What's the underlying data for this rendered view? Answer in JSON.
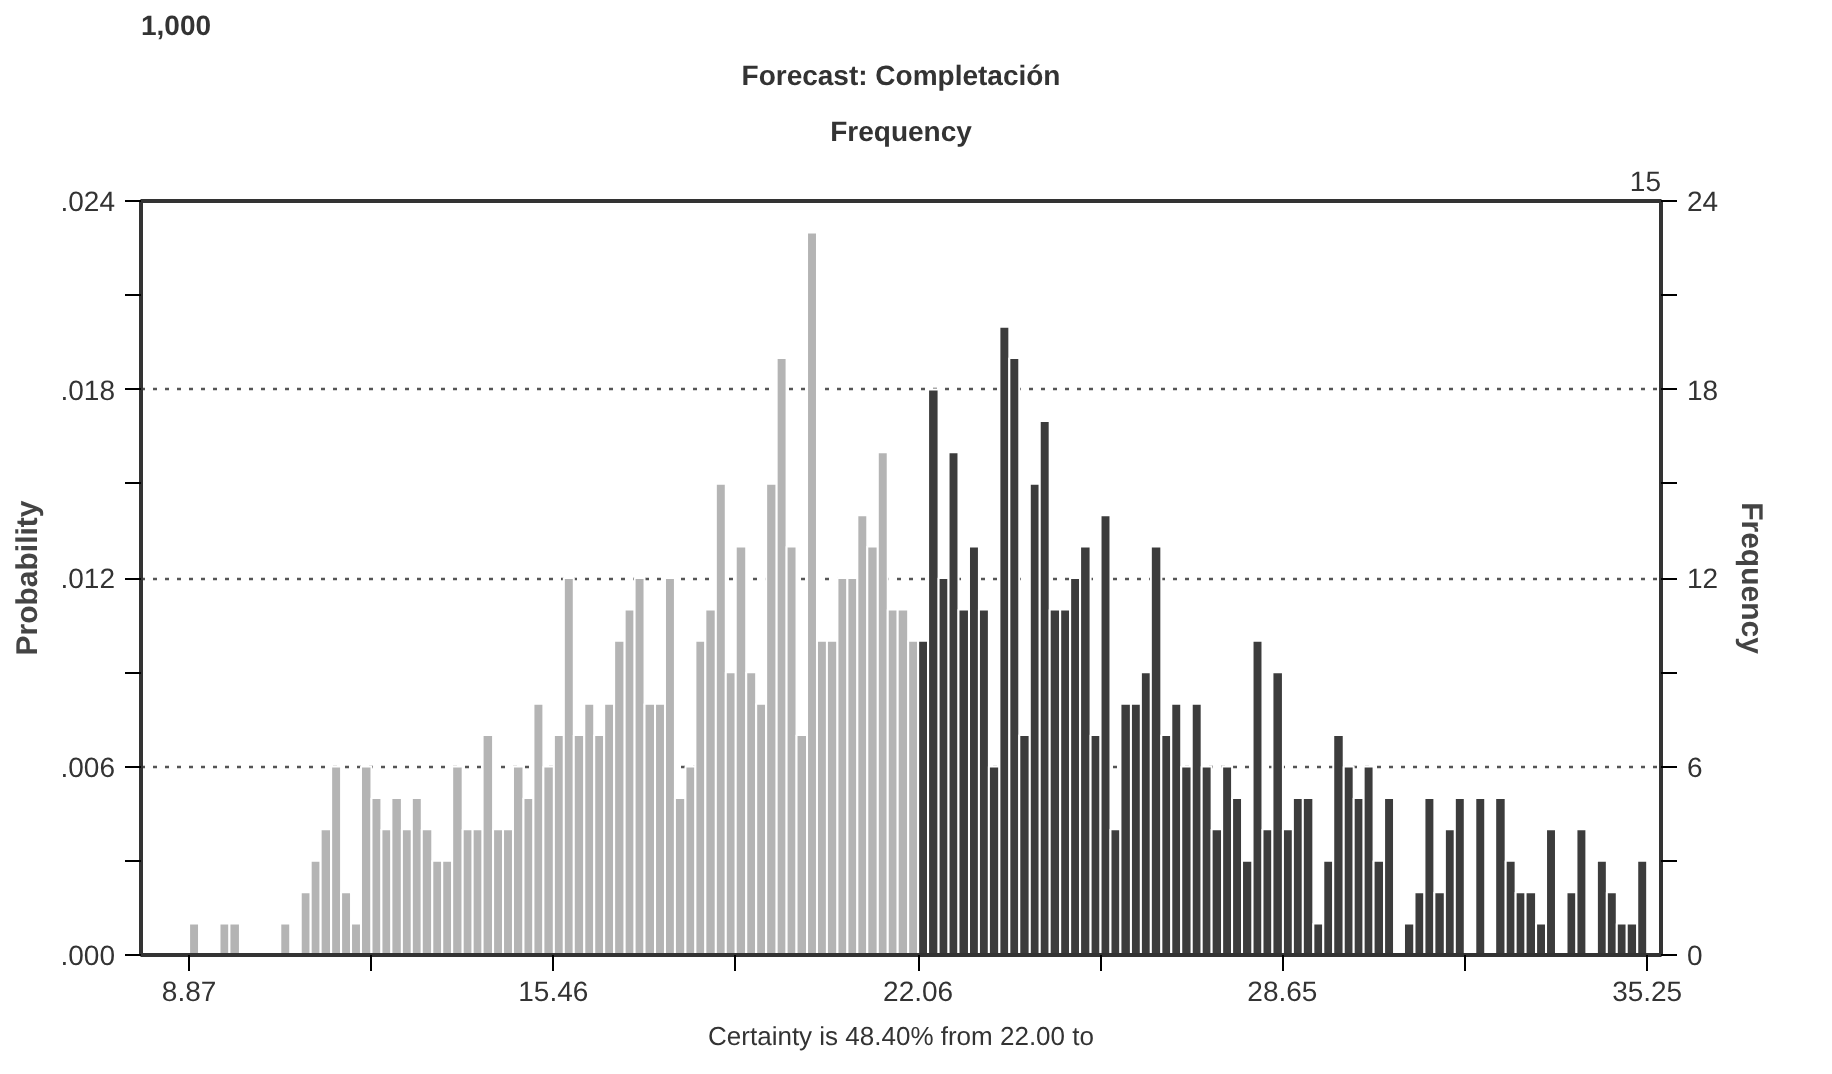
{
  "chart_data": {
    "type": "histogram",
    "title": "Forecast: Completación",
    "subtitle": "Frequency",
    "ylabel": "Probability",
    "y2label": "Frequency",
    "annotations": [
      "1,000",
      "15",
      "Certainty is 48.40% from 22.00 to"
    ],
    "bins": [
      8.87,
      9.05,
      9.24,
      9.42,
      9.6,
      9.79,
      9.97,
      10.15,
      10.34,
      10.52,
      10.7,
      10.89,
      11.07,
      11.25,
      11.44,
      11.62,
      11.8,
      11.98,
      12.17,
      12.35,
      12.53,
      12.72,
      12.9,
      13.08,
      13.27,
      13.45,
      13.63,
      13.82,
      14.0,
      14.18,
      14.37,
      14.55,
      14.73,
      14.92,
      15.1,
      15.28,
      15.47,
      15.65,
      15.83,
      16.02,
      16.2,
      16.38,
      16.56,
      16.75,
      16.93,
      17.11,
      17.3,
      17.48,
      17.66,
      17.85,
      18.03,
      18.21,
      18.4,
      18.58,
      18.76,
      18.95,
      19.13,
      19.31,
      19.5,
      19.68,
      19.86,
      20.05,
      20.23,
      20.41,
      20.6,
      20.78,
      20.96,
      21.14,
      21.33,
      21.51,
      21.69,
      21.88,
      22.06,
      22.24,
      22.43,
      22.61,
      22.79,
      22.98,
      23.16,
      23.34,
      23.53,
      23.71,
      23.89,
      24.08,
      24.26,
      24.44,
      24.63,
      24.81,
      24.99,
      25.18,
      25.36,
      25.54,
      25.72,
      25.91,
      26.09,
      26.27,
      26.46,
      26.64,
      26.82,
      27.01,
      27.19,
      27.37,
      27.56,
      27.74,
      27.92,
      28.11,
      28.29,
      28.47,
      28.66,
      28.84,
      29.02,
      29.21,
      29.39,
      29.57,
      29.76,
      29.94,
      30.12,
      30.3,
      30.49,
      30.67,
      30.85,
      31.04,
      31.22,
      31.4,
      31.59,
      31.77,
      31.95,
      32.14,
      32.32,
      32.5,
      32.69,
      32.87,
      33.05,
      33.24,
      33.42,
      33.6,
      33.79,
      33.97,
      34.15,
      34.34,
      34.52,
      34.7,
      34.88,
      35.07,
      35.25
    ],
    "series": [
      {
        "color": "#b4b4b4",
        "axis": "y2",
        "values": [
          1,
          0,
          0,
          1,
          1,
          0,
          0,
          0,
          0,
          1,
          0,
          2,
          3,
          4,
          6,
          2,
          1,
          6,
          5,
          4,
          5,
          4,
          5,
          4,
          3,
          3,
          6,
          4,
          4,
          7,
          4,
          4,
          6,
          5,
          8,
          6,
          7,
          12,
          7,
          8,
          7,
          8,
          10,
          11,
          12,
          8,
          8,
          12,
          5,
          6,
          10,
          11,
          15,
          9,
          13,
          9,
          8,
          15,
          19,
          13,
          7,
          23,
          10,
          10,
          12,
          12,
          14,
          13,
          16,
          11,
          11,
          10,
          null,
          null,
          null,
          null,
          null,
          null,
          null,
          null,
          null,
          null,
          null,
          null,
          null,
          null,
          null,
          null,
          null,
          null,
          null,
          null,
          null,
          null,
          null,
          null,
          null,
          null,
          null,
          null,
          null,
          null,
          null,
          null,
          null,
          null,
          null,
          null,
          null,
          null,
          null,
          null,
          null,
          null,
          null,
          null,
          null,
          null,
          null,
          null,
          null,
          null,
          null,
          null,
          null,
          null,
          null,
          null,
          null,
          null,
          null,
          null,
          null,
          null,
          null,
          null,
          null,
          null,
          null,
          null,
          null,
          null,
          null,
          null
        ]
      },
      {
        "color": "#3c3c3c",
        "axis": "y2",
        "values": [
          null,
          null,
          null,
          null,
          null,
          null,
          null,
          null,
          null,
          null,
          null,
          null,
          null,
          null,
          null,
          null,
          null,
          null,
          null,
          null,
          null,
          null,
          null,
          null,
          null,
          null,
          null,
          null,
          null,
          null,
          null,
          null,
          null,
          null,
          null,
          null,
          null,
          null,
          null,
          null,
          null,
          null,
          null,
          null,
          null,
          null,
          null,
          null,
          null,
          null,
          null,
          null,
          null,
          null,
          null,
          null,
          null,
          null,
          null,
          null,
          null,
          null,
          null,
          null,
          null,
          null,
          null,
          null,
          null,
          null,
          null,
          null,
          10,
          18,
          12,
          16,
          11,
          13,
          11,
          6,
          20,
          19,
          7,
          15,
          17,
          11,
          11,
          12,
          13,
          7,
          14,
          4,
          8,
          8,
          9,
          13,
          7,
          8,
          6,
          8,
          6,
          4,
          6,
          5,
          3,
          10,
          4,
          9,
          4,
          5,
          5,
          1,
          3,
          7,
          6,
          5,
          6,
          3,
          5,
          0,
          1,
          2,
          5,
          2,
          4,
          5,
          0,
          5,
          0,
          5,
          3,
          2,
          2,
          1,
          4,
          0,
          2,
          4,
          0,
          3,
          2,
          1,
          1,
          3
        ]
      }
    ],
    "xlim": [
      8.0,
      35.5
    ],
    "xticks": [
      8.87,
      {
        "value": 12.165,
        "label": null
      },
      15.46,
      {
        "value": 18.76,
        "label": null
      },
      22.06,
      {
        "value": 25.355,
        "label": null
      },
      28.65,
      {
        "value": 31.95,
        "label": null
      },
      35.25
    ],
    "ylim": [
      0,
      0.024
    ],
    "yticks": [
      {
        "value": 0,
        "label": ".000"
      },
      {
        "value": 0.003,
        "label": null
      },
      {
        "value": 0.006,
        "label": ".006"
      },
      {
        "value": 0.009,
        "label": null
      },
      {
        "value": 0.012,
        "label": ".012"
      },
      {
        "value": 0.015,
        "label": null
      },
      {
        "value": 0.018,
        "label": ".018"
      },
      {
        "value": 0.021,
        "label": null
      },
      {
        "value": 0.024,
        "label": ".024"
      }
    ],
    "y2lim": [
      0,
      24
    ],
    "y2ticks": [
      0,
      {
        "value": 3,
        "label": null
      },
      6,
      {
        "value": 9,
        "label": null
      },
      12,
      {
        "value": 15,
        "label": null
      },
      18,
      {
        "value": 21,
        "label": null
      },
      24
    ],
    "grid": "y"
  }
}
